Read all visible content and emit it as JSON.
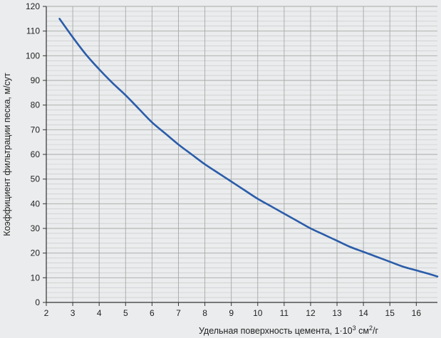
{
  "chart_data": {
    "type": "line",
    "xlabel": "Удельная поверхность цемента, 1·10",
    "xlabel_sup1": "3",
    "xlabel_mid": " см",
    "xlabel_sup2": "2",
    "xlabel_end": "/г",
    "ylabel": "Коэффициент фильтрации песка, м/сут",
    "xlim": [
      2,
      16.8
    ],
    "ylim": [
      0,
      120
    ],
    "x_ticks": [
      2,
      3,
      4,
      5,
      6,
      7,
      8,
      9,
      10,
      11,
      12,
      13,
      14,
      15,
      16
    ],
    "y_ticks": [
      0,
      10,
      20,
      30,
      40,
      50,
      60,
      70,
      80,
      90,
      100,
      110,
      120
    ],
    "grid": "on",
    "colors": {
      "line": "#2a5caa",
      "background": "#eaeced",
      "grid_major": "#a8a8a8",
      "grid_minor": "#c4c4c4",
      "axis": "#333333"
    },
    "series": [
      {
        "x": [
          2.5,
          3,
          3.5,
          4,
          4.5,
          5,
          5.5,
          6,
          6.5,
          7,
          7.5,
          8,
          8.5,
          9,
          9.5,
          10,
          10.5,
          11,
          11.5,
          12,
          12.5,
          13,
          13.5,
          14,
          14.5,
          15,
          15.5,
          16,
          16.5,
          16.8
        ],
        "y": [
          115,
          107.5,
          100.5,
          94.5,
          89,
          84,
          78.5,
          73,
          68.5,
          64,
          60,
          56,
          52.5,
          49,
          45.5,
          42,
          39,
          36,
          33,
          30,
          27.5,
          25,
          22.5,
          20.5,
          18.5,
          16.5,
          14.5,
          13,
          11.5,
          10.5
        ]
      }
    ]
  }
}
